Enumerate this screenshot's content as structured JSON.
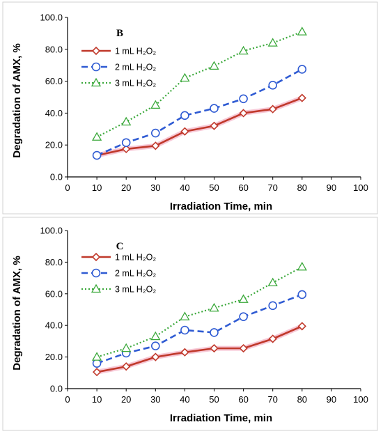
{
  "chart_data": [
    {
      "type": "line",
      "panel_label": "B",
      "xlabel": "Irradiation Time, min",
      "ylabel": "Degradation of AMX, %",
      "xlim": [
        0,
        100
      ],
      "ylim": [
        0,
        100
      ],
      "x_ticks": [
        "0",
        "10",
        "20",
        "30",
        "40",
        "50",
        "60",
        "70",
        "80",
        "90",
        "100"
      ],
      "y_ticks": [
        "0.0",
        "20.0",
        "40.0",
        "60.0",
        "80.0",
        "100.0"
      ],
      "legend_position": "top-left",
      "x": [
        10,
        20,
        30,
        40,
        50,
        60,
        70,
        80
      ],
      "series": [
        {
          "name": "1 mL H₂O₂",
          "color": "#c0392b",
          "marker": "diamond",
          "line": "solid",
          "values": [
            13.5,
            17.5,
            19.5,
            28.5,
            32.0,
            40.0,
            42.5,
            49.5
          ]
        },
        {
          "name": "2 mL H₂O₂",
          "color": "#2f5bd3",
          "marker": "circle",
          "line": "dashed",
          "values": [
            13.5,
            21.5,
            27.5,
            38.5,
            43.0,
            49.0,
            57.5,
            67.5
          ]
        },
        {
          "name": "3 mL H₂O₂",
          "color": "#3aa83a",
          "marker": "triangle",
          "line": "dotted",
          "values": [
            25.0,
            34.5,
            45.0,
            62.0,
            69.5,
            79.0,
            84.0,
            91.0
          ]
        }
      ]
    },
    {
      "type": "line",
      "panel_label": "C",
      "xlabel": "Irradiation Time, min",
      "ylabel": "Degradation of AMX, %",
      "xlim": [
        0,
        100
      ],
      "ylim": [
        0,
        100
      ],
      "x_ticks": [
        "0",
        "10",
        "20",
        "30",
        "40",
        "50",
        "60",
        "70",
        "80",
        "90",
        "100"
      ],
      "y_ticks": [
        "0.0",
        "20.0",
        "40.0",
        "60.0",
        "80.0",
        "100.0"
      ],
      "legend_position": "top-left",
      "x": [
        10,
        20,
        30,
        40,
        50,
        60,
        70,
        80
      ],
      "series": [
        {
          "name": "1 mL H₂O₂",
          "color": "#c0392b",
          "marker": "diamond",
          "line": "solid",
          "values": [
            10.5,
            14.0,
            20.0,
            23.0,
            25.5,
            25.5,
            31.5,
            39.5
          ]
        },
        {
          "name": "2 mL H₂O₂",
          "color": "#2f5bd3",
          "marker": "circle",
          "line": "dashed",
          "values": [
            16.0,
            22.5,
            27.0,
            37.0,
            35.5,
            45.5,
            52.5,
            59.5
          ]
        },
        {
          "name": "3 mL H₂O₂",
          "color": "#3aa83a",
          "marker": "triangle",
          "line": "dotted",
          "values": [
            20.0,
            25.5,
            33.0,
            45.5,
            51.0,
            56.5,
            67.0,
            77.0
          ]
        }
      ]
    }
  ]
}
